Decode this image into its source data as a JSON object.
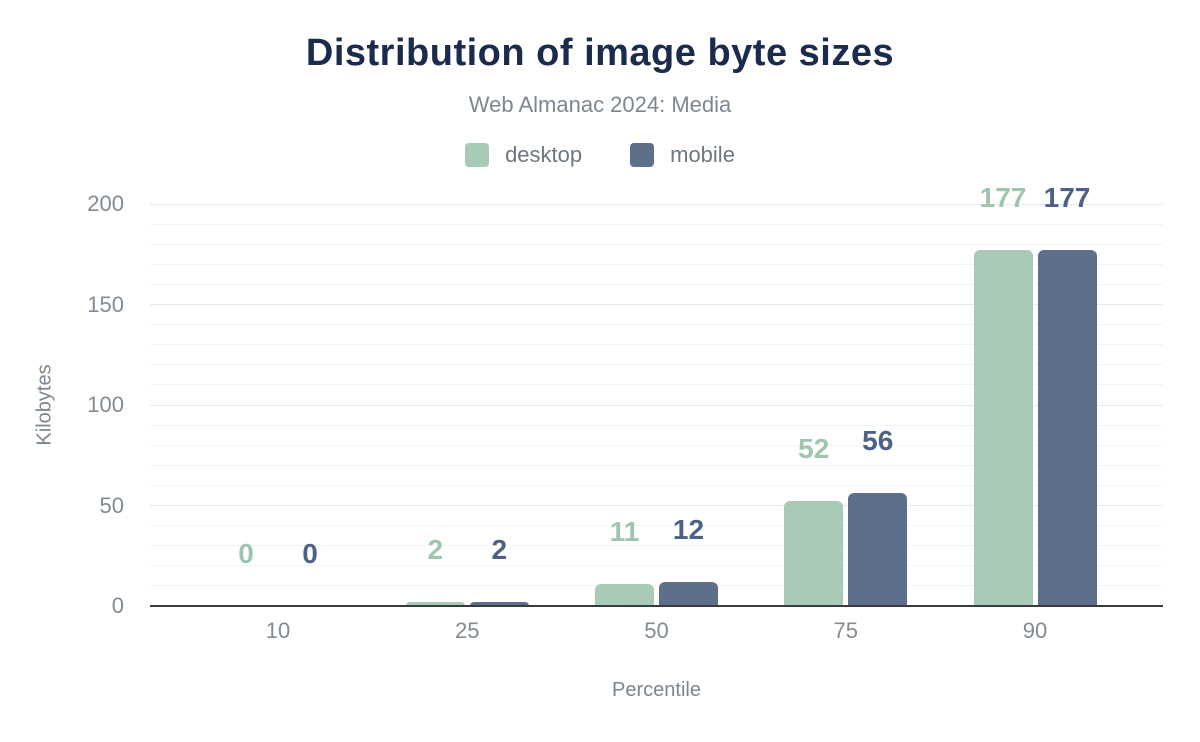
{
  "chart_data": {
    "type": "bar",
    "title": "Distribution of image byte sizes",
    "subtitle": "Web Almanac 2024: Media",
    "xlabel": "Percentile",
    "ylabel": "Kilobytes",
    "categories": [
      "10",
      "25",
      "50",
      "75",
      "90"
    ],
    "series": [
      {
        "name": "desktop",
        "color": "#a9cab7",
        "label_color": "#9fc5af",
        "values": [
          0,
          2,
          11,
          52,
          177
        ]
      },
      {
        "name": "mobile",
        "color": "#5e6f8c",
        "label_color": "#4e6084",
        "values": [
          0,
          2,
          12,
          56,
          177
        ]
      }
    ],
    "y_axis": {
      "min": 0,
      "max": 200,
      "major_step": 50,
      "minor_step": 10,
      "tick_labels": [
        "0",
        "50",
        "100",
        "150",
        "200"
      ]
    },
    "legend_position": "top",
    "grid": true
  },
  "colors": {
    "background": "#ffffff",
    "title_text": "#1b2b4e",
    "muted_text": "#7e8790",
    "tick_text": "#828b93",
    "grid_major": "#e9e9e9",
    "grid_minor": "#f3f3f3",
    "axis_line": "#3a3b3d"
  }
}
